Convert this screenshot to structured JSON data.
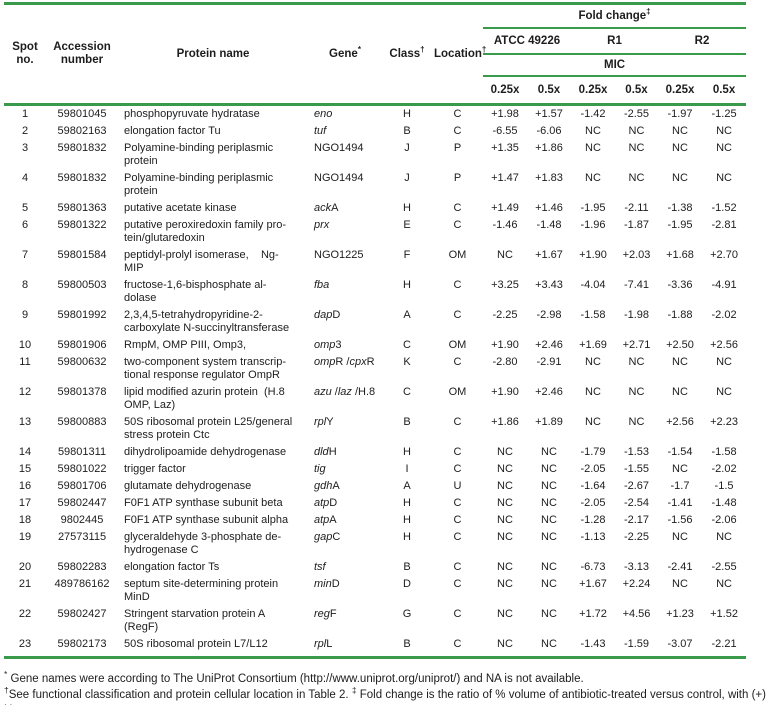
{
  "colors": {
    "rule_green": "#3a9a4c"
  },
  "table": {
    "columns": {
      "spot": "Spot no.",
      "accession": "Accession number",
      "protein": "Protein name",
      "gene": "Gene",
      "gene_sup": "*",
      "class": "Class",
      "class_sup": "†",
      "location": "Location",
      "location_sup": "†",
      "fold_change": "Fold change",
      "fold_change_sup": "‡",
      "groups": [
        "ATCC 49226",
        "R1",
        "R2"
      ],
      "mic": "MIC",
      "doses": [
        "0.25x",
        "0.5x",
        "0.25x",
        "0.5x",
        "0.25x",
        "0.5x"
      ]
    },
    "rows": [
      {
        "spot": "1",
        "accession": "59801045",
        "protein": "phosphopyruvate hydratase",
        "gene": [
          [
            "eno",
            true
          ]
        ],
        "class": "H",
        "location": "C",
        "values": [
          "+1.98",
          "+1.57",
          "-1.42",
          "-2.55",
          "-1.97",
          "-1.25"
        ]
      },
      {
        "spot": "2",
        "accession": "59802163",
        "protein": "elongation factor Tu",
        "gene": [
          [
            "tuf",
            true
          ]
        ],
        "class": "B",
        "location": "C",
        "values": [
          "-6.55",
          "-6.06",
          "NC",
          "NC",
          "NC",
          "NC"
        ]
      },
      {
        "spot": "3",
        "accession": "59801832",
        "protein": "Polyamine-binding periplasmic\nprotein",
        "gene": [
          [
            "NGO1494",
            false
          ]
        ],
        "class": "J",
        "location": "P",
        "values": [
          "+1.35",
          "+1.86",
          "NC",
          "NC",
          "NC",
          "NC"
        ]
      },
      {
        "spot": "4",
        "accession": "59801832",
        "protein": "Polyamine-binding periplasmic\nprotein",
        "gene": [
          [
            "NGO1494",
            false
          ]
        ],
        "class": "J",
        "location": "P",
        "values": [
          "+1.47",
          "+1.83",
          "NC",
          "NC",
          "NC",
          "NC"
        ]
      },
      {
        "spot": "5",
        "accession": "59801363",
        "protein": "putative acetate kinase",
        "gene": [
          [
            "ack",
            true
          ],
          [
            "A",
            false
          ]
        ],
        "class": "H",
        "location": "C",
        "values": [
          "+1.49",
          "+1.46",
          "-1.95",
          "-2.11",
          "-1.38",
          "-1.52"
        ]
      },
      {
        "spot": "6",
        "accession": "59801322",
        "protein": "putative peroxiredoxin family pro-\ntein/glutaredoxin",
        "gene": [
          [
            "prx",
            true
          ]
        ],
        "class": "E",
        "location": "C",
        "values": [
          "-1.46",
          "-1.48",
          "-1.96",
          "-1.87",
          "-1.95",
          "-2.81"
        ]
      },
      {
        "spot": "7",
        "accession": "59801584",
        "protein": "peptidyl-prolyl isomerase,    Ng-\nMIP",
        "gene": [
          [
            "NGO1225",
            false
          ]
        ],
        "class": "F",
        "location": "OM",
        "values": [
          "NC",
          "+1.67",
          "+1.90",
          "+2.03",
          "+1.68",
          "+2.70"
        ]
      },
      {
        "spot": "8",
        "accession": "59800503",
        "protein": "fructose-1,6-bisphosphate al-\ndolase",
        "gene": [
          [
            "fba",
            true
          ]
        ],
        "class": "H",
        "location": "C",
        "values": [
          "+3.25",
          "+3.43",
          "-4.04",
          "-7.41",
          "-3.36",
          "-4.91"
        ]
      },
      {
        "spot": "9",
        "accession": "59801992",
        "protein": "2,3,4,5-tetrahydropyridine-2-\ncarboxylate N-succinyltransferase",
        "gene": [
          [
            "dap",
            true
          ],
          [
            "D",
            false
          ]
        ],
        "class": "A",
        "location": "C",
        "values": [
          "-2.25",
          "-2.98",
          "-1.58",
          "-1.98",
          "-1.88",
          "-2.02"
        ]
      },
      {
        "spot": "10",
        "accession": "59801906",
        "protein": "RmpM, OMP PIII, Omp3,",
        "gene": [
          [
            "omp",
            true
          ],
          [
            "3",
            false
          ]
        ],
        "class": "C",
        "location": "OM",
        "values": [
          "+1.90",
          "+2.46",
          "+1.69",
          "+2.71",
          "+2.50",
          "+2.56"
        ]
      },
      {
        "spot": "11",
        "accession": "59800632",
        "protein": "two-component system transcrip-\ntional response regulator OmpR",
        "gene": [
          [
            "omp",
            true
          ],
          [
            "R ",
            false
          ],
          [
            "/",
            false
          ],
          [
            "cpx",
            true
          ],
          [
            "R",
            false
          ]
        ],
        "class": "K",
        "location": "C",
        "values": [
          "-2.80",
          "-2.91",
          "NC",
          "NC",
          "NC",
          "NC"
        ]
      },
      {
        "spot": "12",
        "accession": "59801378",
        "protein": "lipid modified azurin protein  (H.8\nOMP, Laz)",
        "gene": [
          [
            "azu ",
            true
          ],
          [
            "/",
            false
          ],
          [
            "laz ",
            true
          ],
          [
            "/H.8",
            false
          ]
        ],
        "class": "C",
        "location": "OM",
        "values": [
          "+1.90",
          "+2.46",
          "NC",
          "NC",
          "NC",
          "NC"
        ]
      },
      {
        "spot": "13",
        "accession": "59800883",
        "protein": "50S ribosomal protein L25/general\nstress protein Ctc",
        "gene": [
          [
            "rpl",
            true
          ],
          [
            "Y",
            false
          ]
        ],
        "class": "B",
        "location": "C",
        "values": [
          "+1.86",
          "+1.89",
          "NC",
          "NC",
          "+2.56",
          "+2.23"
        ]
      },
      {
        "spot": "14",
        "accession": "59801311",
        "protein": "dihydrolipoamide dehydrogenase",
        "gene": [
          [
            "dld",
            true
          ],
          [
            "H",
            false
          ]
        ],
        "class": "H",
        "location": "C",
        "values": [
          "NC",
          "NC",
          "-1.79",
          "-1.53",
          "-1.54",
          "-1.58"
        ]
      },
      {
        "spot": "15",
        "accession": "59801022",
        "protein": "trigger factor",
        "gene": [
          [
            "tig",
            true
          ]
        ],
        "class": "I",
        "location": "C",
        "values": [
          "NC",
          "NC",
          "-2.05",
          "-1.55",
          "NC",
          "-2.02"
        ]
      },
      {
        "spot": "16",
        "accession": "59801706",
        "protein": "glutamate dehydrogenase",
        "gene": [
          [
            "gdh",
            true
          ],
          [
            "A",
            false
          ]
        ],
        "class": "A",
        "location": "U",
        "values": [
          "NC",
          "NC",
          "-1.64",
          "-2.67",
          "-1.7",
          "-1.5"
        ]
      },
      {
        "spot": "17",
        "accession": "59802447",
        "protein": "F0F1 ATP synthase subunit beta",
        "gene": [
          [
            "atp",
            true
          ],
          [
            "D",
            false
          ]
        ],
        "class": "H",
        "location": "C",
        "values": [
          "NC",
          "NC",
          "-2.05",
          "-2.54",
          "-1.41",
          "-1.48"
        ]
      },
      {
        "spot": "18",
        "accession": "9802445",
        "protein": "F0F1 ATP synthase subunit alpha",
        "gene": [
          [
            "atp",
            true
          ],
          [
            "A",
            false
          ]
        ],
        "class": "H",
        "location": "C",
        "values": [
          "NC",
          "NC",
          "-1.28",
          "-2.17",
          "-1.56",
          "-2.06"
        ]
      },
      {
        "spot": "19",
        "accession": "27573115",
        "protein": "glyceraldehyde 3-phosphate de-\nhydrogenase C",
        "gene": [
          [
            "gap",
            true
          ],
          [
            "C",
            false
          ]
        ],
        "class": "H",
        "location": "C",
        "values": [
          "NC",
          "NC",
          "-1.13",
          "-2.25",
          "NC",
          "NC"
        ]
      },
      {
        "spot": "20",
        "accession": "59802283",
        "protein": "elongation factor Ts",
        "gene": [
          [
            "tsf",
            true
          ]
        ],
        "class": "B",
        "location": "C",
        "values": [
          "NC",
          "NC",
          "-6.73",
          "-3.13",
          "-2.41",
          "-2.55"
        ]
      },
      {
        "spot": "21",
        "accession": "489786162",
        "protein": "septum site-determining protein\nMinD",
        "gene": [
          [
            "min",
            true
          ],
          [
            "D",
            false
          ]
        ],
        "class": "D",
        "location": "C",
        "values": [
          "NC",
          "NC",
          "+1.67",
          "+2.24",
          "NC",
          "NC"
        ]
      },
      {
        "spot": "22",
        "accession": "59802427",
        "protein": "Stringent starvation protein A\n(RegF)",
        "gene": [
          [
            "reg",
            true
          ],
          [
            "F",
            false
          ]
        ],
        "class": "G",
        "location": "C",
        "values": [
          "NC",
          "NC",
          "+1.72",
          "+4.56",
          "+1.23",
          "+1.52"
        ]
      },
      {
        "spot": "23",
        "accession": "59802173",
        "protein": "50S ribosomal protein L7/L12",
        "gene": [
          [
            "rpl",
            true
          ],
          [
            "L",
            false
          ]
        ],
        "class": "B",
        "location": "C",
        "values": [
          "NC",
          "NC",
          "-1.43",
          "-1.59",
          "-3.07",
          "-2.21"
        ]
      }
    ]
  },
  "footnotes": [
    {
      "segments": [
        {
          "t": "*",
          "sup": true
        },
        {
          "t": " Gene names were according to The UniProt Consortium (http://www.uniprot.org/uniprot/) and NA is not available.",
          "sup": false
        }
      ]
    },
    {
      "segments": [
        {
          "t": "†",
          "sup": true
        },
        {
          "t": "See functional classification and protein cellular location in Table 2. ",
          "sup": false
        },
        {
          "t": "‡",
          "sup": true
        },
        {
          "t": " Fold change is the ratio of % volume of antibiotic-treated versus control, with (+) Up-\nregulated Proteins; (-) Down-regulated Proteins; ND: No detectable; NC: No change.",
          "sup": false
        }
      ]
    }
  ]
}
